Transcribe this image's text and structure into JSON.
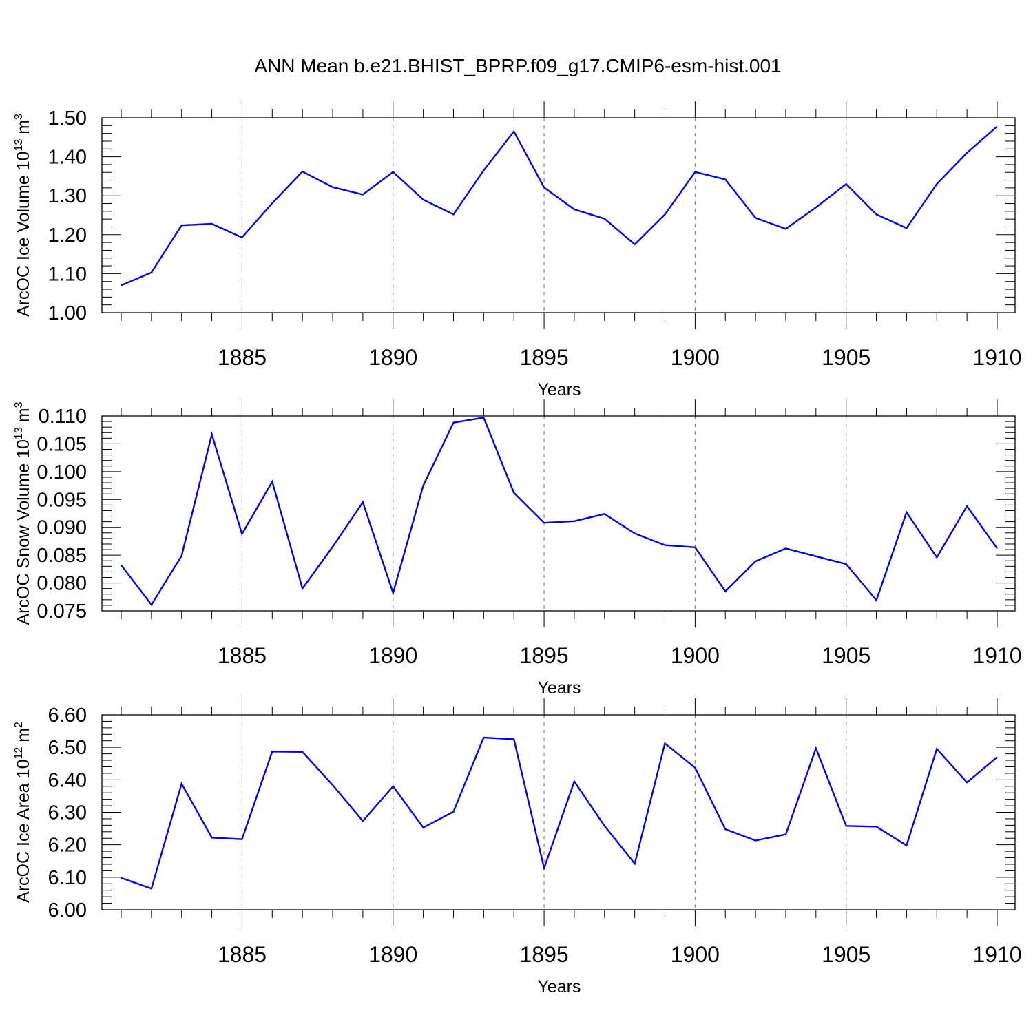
{
  "title": "ANN Mean b.e21.BHIST_BPRP.f09_g17.CMIP6-esm-hist.001",
  "colors": {
    "line": "#0000ff",
    "axis": "#000000",
    "grid": "#888888"
  },
  "chart_data": [
    {
      "type": "line",
      "xlabel": "Years",
      "ylabel_main": "ArcOC Ice Volume 10",
      "ylabel_sup": "13",
      "ylabel_tail": " m",
      "ylabel_unit_sup": "3",
      "xlim": [
        1881,
        1910
      ],
      "ylim": [
        1.0,
        1.5
      ],
      "x_ticks": [
        1885,
        1890,
        1895,
        1900,
        1905,
        1910
      ],
      "y_ticks": [
        "1.00",
        "1.10",
        "1.20",
        "1.30",
        "1.40",
        "1.50"
      ],
      "grid": "vertical dashed at labeled years",
      "x": [
        1881,
        1882,
        1883,
        1884,
        1885,
        1886,
        1887,
        1888,
        1889,
        1890,
        1891,
        1892,
        1893,
        1894,
        1895,
        1896,
        1897,
        1898,
        1899,
        1900,
        1901,
        1902,
        1903,
        1904,
        1905,
        1906,
        1907,
        1908,
        1909,
        1910
      ],
      "values": [
        1.07,
        1.103,
        1.224,
        1.228,
        1.193,
        1.281,
        1.362,
        1.322,
        1.303,
        1.361,
        1.29,
        1.252,
        1.365,
        1.465,
        1.321,
        1.265,
        1.241,
        1.175,
        1.252,
        1.361,
        1.342,
        1.243,
        1.215,
        1.27,
        1.33,
        1.252,
        1.217,
        1.33,
        1.41,
        1.478
      ]
    },
    {
      "type": "line",
      "xlabel": "Years",
      "ylabel_main": "ArcOC Snow Volume 10",
      "ylabel_sup": "13",
      "ylabel_tail": " m",
      "ylabel_unit_sup": "3",
      "xlim": [
        1881,
        1910
      ],
      "ylim": [
        0.075,
        0.11
      ],
      "x_ticks": [
        1885,
        1890,
        1895,
        1900,
        1905,
        1910
      ],
      "y_ticks": [
        "0.075",
        "0.080",
        "0.085",
        "0.090",
        "0.095",
        "0.100",
        "0.105",
        "0.110"
      ],
      "grid": "vertical dashed at labeled years",
      "x": [
        1881,
        1882,
        1883,
        1884,
        1885,
        1886,
        1887,
        1888,
        1889,
        1890,
        1891,
        1892,
        1893,
        1894,
        1895,
        1896,
        1897,
        1898,
        1899,
        1900,
        1901,
        1902,
        1903,
        1904,
        1905,
        1906,
        1907,
        1908,
        1909,
        1910
      ],
      "values": [
        0.0832,
        0.0761,
        0.0849,
        0.1067,
        0.0888,
        0.0982,
        0.079,
        0.0865,
        0.0945,
        0.0782,
        0.0975,
        0.1088,
        0.1097,
        0.0962,
        0.0908,
        0.0911,
        0.0924,
        0.0889,
        0.0868,
        0.0864,
        0.0785,
        0.0839,
        0.0862,
        0.0848,
        0.0834,
        0.0769,
        0.0927,
        0.0846,
        0.0938,
        0.0862
      ]
    },
    {
      "type": "line",
      "xlabel": "Years",
      "ylabel_main": "ArcOC Ice Area 10",
      "ylabel_sup": "12",
      "ylabel_tail": " m",
      "ylabel_unit_sup": "2",
      "xlim": [
        1881,
        1910
      ],
      "ylim": [
        6.0,
        6.6
      ],
      "x_ticks": [
        1885,
        1890,
        1895,
        1900,
        1905,
        1910
      ],
      "y_ticks": [
        "6.00",
        "6.10",
        "6.20",
        "6.30",
        "6.40",
        "6.50",
        "6.60"
      ],
      "grid": "vertical dashed at labeled years",
      "x": [
        1881,
        1882,
        1883,
        1884,
        1885,
        1886,
        1887,
        1888,
        1889,
        1890,
        1891,
        1892,
        1893,
        1894,
        1895,
        1896,
        1897,
        1898,
        1899,
        1900,
        1901,
        1902,
        1903,
        1904,
        1905,
        1906,
        1907,
        1908,
        1909,
        1910
      ],
      "values": [
        6.098,
        6.065,
        6.388,
        6.222,
        6.217,
        6.487,
        6.486,
        6.384,
        6.273,
        6.38,
        6.253,
        6.302,
        6.53,
        6.525,
        6.128,
        6.395,
        6.258,
        6.142,
        6.512,
        6.437,
        6.248,
        6.213,
        6.232,
        6.497,
        6.258,
        6.256,
        6.198,
        6.495,
        6.392,
        6.47
      ]
    }
  ]
}
